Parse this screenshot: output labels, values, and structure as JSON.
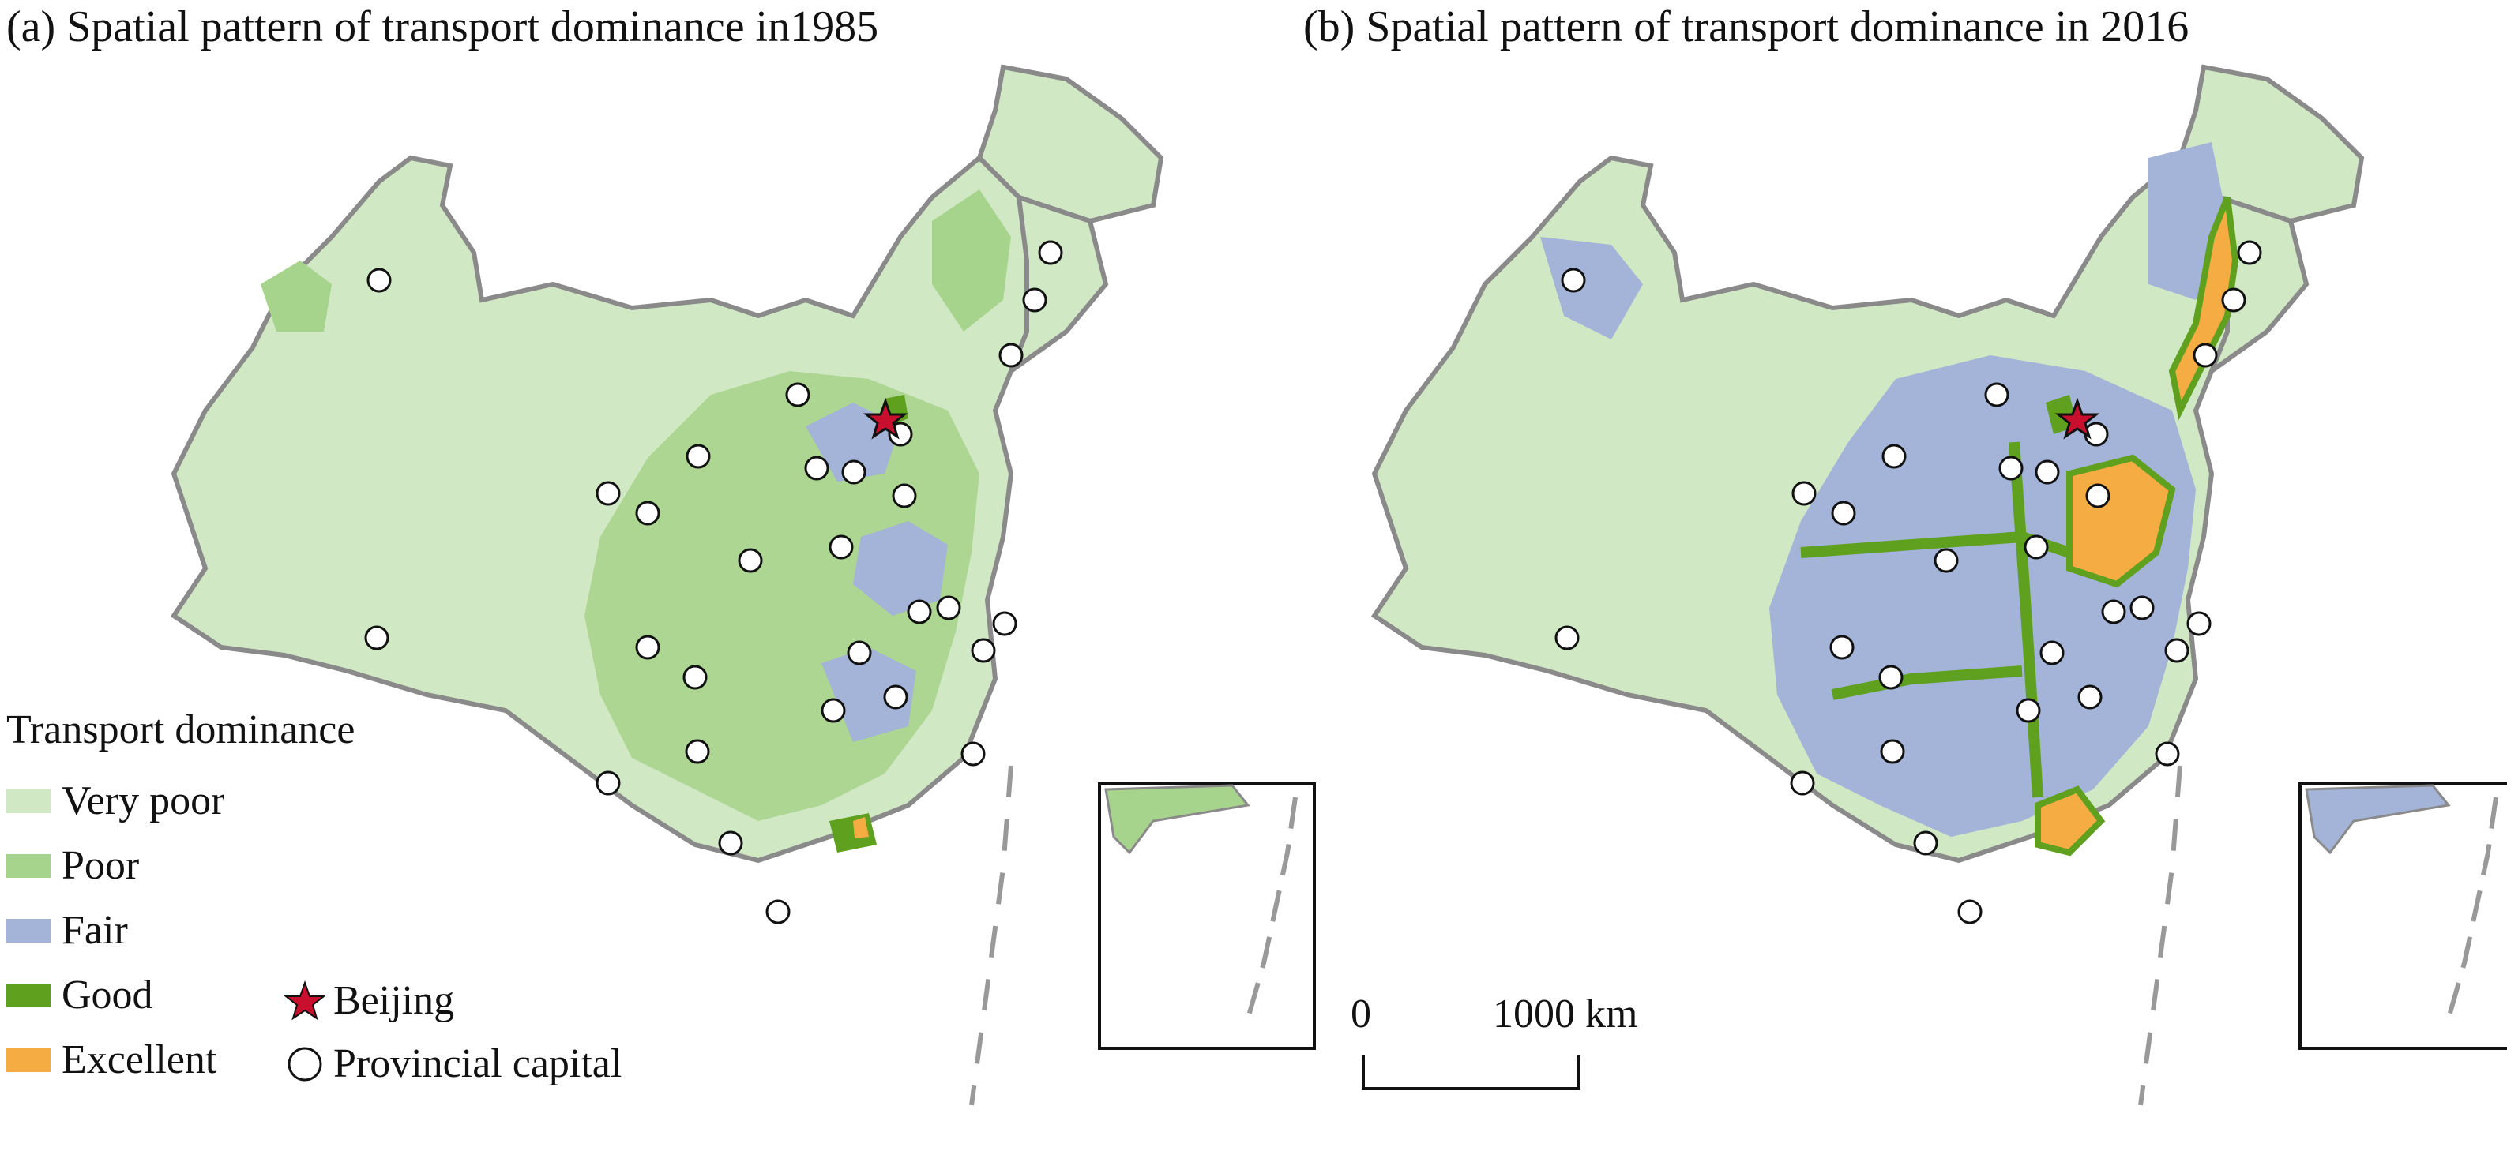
{
  "panel_a": {
    "title": "(a) Spatial pattern of transport dominance in1985"
  },
  "panel_b": {
    "title": "(b) Spatial pattern of transport dominance in 2016"
  },
  "legend": {
    "title": "Transport dominance",
    "classes": [
      {
        "label": "Very poor",
        "color": "#d1e8c4"
      },
      {
        "label": "Poor",
        "color": "#a7d48c"
      },
      {
        "label": "Fair",
        "color": "#a3b4d8"
      },
      {
        "label": "Good",
        "color": "#5fa11f"
      },
      {
        "label": "Excellent",
        "color": "#f5ac42"
      }
    ],
    "beijing_label": "Beijing",
    "capital_label": "Provincial capital",
    "beijing_color": "#c8102e"
  },
  "scale_bar": {
    "start_label": "0",
    "end_label": "1000 km"
  }
}
